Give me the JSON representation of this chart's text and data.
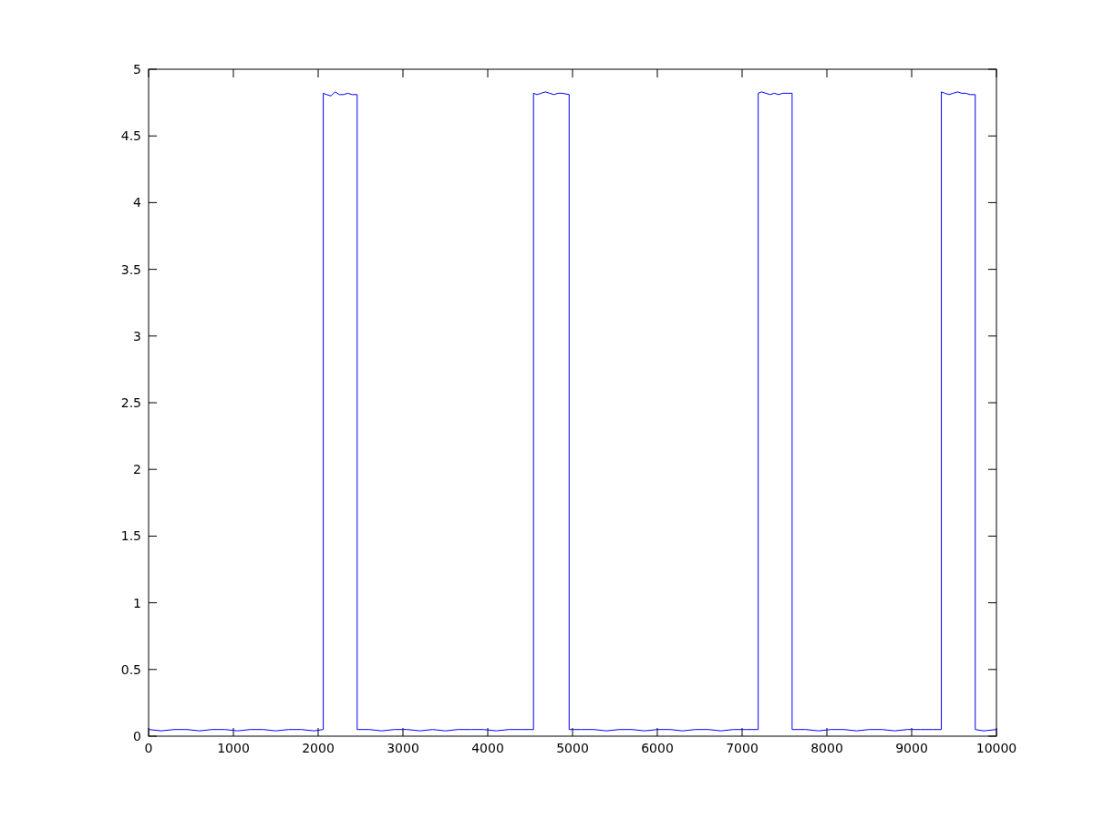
{
  "chart_data": {
    "type": "line",
    "x": [
      0,
      150,
      300,
      450,
      600,
      750,
      900,
      1050,
      1200,
      1350,
      1500,
      1650,
      1800,
      1950,
      2060,
      2060,
      2100,
      2150,
      2200,
      2250,
      2300,
      2350,
      2400,
      2460,
      2460,
      2600,
      2750,
      2900,
      3050,
      3200,
      3350,
      3500,
      3650,
      3800,
      3950,
      4100,
      4250,
      4400,
      4540,
      4540,
      4580,
      4630,
      4680,
      4730,
      4780,
      4830,
      4880,
      4960,
      4960,
      5100,
      5250,
      5400,
      5550,
      5700,
      5850,
      6000,
      6150,
      6300,
      6450,
      6600,
      6750,
      6900,
      7050,
      7190,
      7190,
      7230,
      7280,
      7330,
      7380,
      7430,
      7480,
      7530,
      7590,
      7590,
      7750,
      7900,
      8050,
      8200,
      8350,
      8500,
      8650,
      8800,
      8950,
      9100,
      9250,
      9350,
      9350,
      9390,
      9440,
      9490,
      9540,
      9590,
      9640,
      9690,
      9750,
      9750,
      9850,
      10000
    ],
    "series": [
      {
        "color": "#0000ff",
        "values": [
          0.05,
          0.04,
          0.05,
          0.05,
          0.04,
          0.05,
          0.05,
          0.04,
          0.05,
          0.05,
          0.04,
          0.05,
          0.05,
          0.04,
          0.05,
          4.82,
          4.81,
          4.8,
          4.83,
          4.81,
          4.81,
          4.82,
          4.81,
          4.81,
          0.05,
          0.05,
          0.04,
          0.05,
          0.05,
          0.04,
          0.05,
          0.04,
          0.05,
          0.05,
          0.05,
          0.04,
          0.05,
          0.05,
          0.05,
          4.82,
          4.81,
          4.82,
          4.83,
          4.82,
          4.81,
          4.82,
          4.82,
          4.81,
          0.05,
          0.05,
          0.05,
          0.04,
          0.05,
          0.05,
          0.04,
          0.05,
          0.05,
          0.04,
          0.05,
          0.05,
          0.04,
          0.05,
          0.05,
          0.05,
          4.82,
          4.83,
          4.82,
          4.81,
          4.82,
          4.81,
          4.82,
          4.82,
          4.82,
          0.05,
          0.05,
          0.04,
          0.05,
          0.05,
          0.04,
          0.05,
          0.05,
          0.04,
          0.05,
          0.05,
          0.05,
          0.05,
          4.83,
          4.82,
          4.81,
          4.82,
          4.83,
          4.82,
          4.82,
          4.81,
          4.81,
          0.05,
          0.04,
          0.05
        ]
      }
    ],
    "xlim": [
      0,
      10000
    ],
    "xticks": [
      0,
      1000,
      2000,
      3000,
      4000,
      5000,
      6000,
      7000,
      8000,
      9000,
      10000
    ],
    "ylim": [
      0,
      5
    ],
    "yticks": [
      0,
      0.5,
      1,
      1.5,
      2,
      2.5,
      3,
      3.5,
      4,
      4.5,
      5
    ],
    "grid": false,
    "marker": "none",
    "line_style": "solid"
  }
}
